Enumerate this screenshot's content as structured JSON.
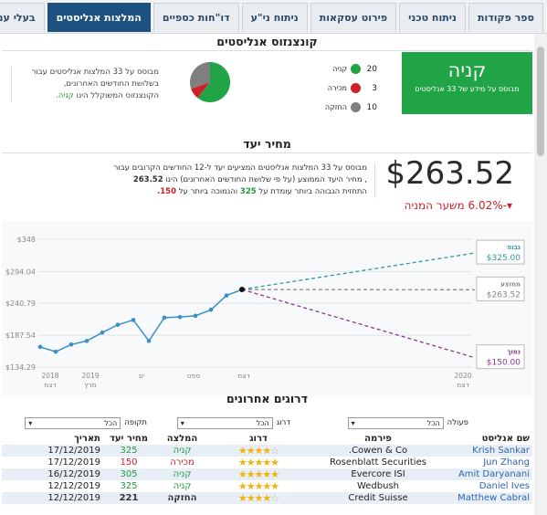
{
  "tabs": [
    "ספר פקודות",
    "ניתוח טכני",
    "פירוט עסקאות",
    "ניתוח ני\"ע",
    "דו\"חות כספיים",
    "המלצות אנליסטים",
    "בעלי עניין"
  ],
  "active_tab": 5,
  "consensus": {
    "title": "קונצנזוס אנליסטים",
    "recommendation": "קניה",
    "based_on": "מבוסס על מידע של 33 אנליסטים",
    "legend": [
      {
        "count": "20",
        "label": "קניה",
        "color": "#21a445"
      },
      {
        "count": "3",
        "label": "מכירה",
        "color": "#cf2027"
      },
      {
        "count": "10",
        "label": "החזקה",
        "color": "#7f7f7f"
      }
    ],
    "text_line1": "מבוסס על 33 המלצות אנליסטים עבור",
    "text_line2": "בשלושת החודשים האחרונים,",
    "text_line3_prefix": "הקונצנזוס המשוקלל הינו",
    "text_line3_value": "קניה."
  },
  "target": {
    "title": "מחיר יעד",
    "price": "$263.52",
    "change": "▾-6.02% משער המניה",
    "text_line1": "מבוסס על 33 המלצות אנליסטים המציעים יעד ל-12 החודשים הקרובים עבור",
    "text_line2": ", מחיר היעד הממוצע (על פי שלושת החודשים האחרונים) הינו",
    "text_line2_value": "263.52",
    "text_line3_a": "התחזית הגבוהה ביותר עומדת על",
    "text_line3_b": "325",
    "text_line3_c": "והנמוכה ביותר על",
    "text_line3_d": "150."
  },
  "chart_data": {
    "type": "line",
    "yticks": [
      "$348",
      "$294.04",
      "$240.79",
      "$187.54",
      "$134.29"
    ],
    "ylim": [
      134.29,
      348
    ],
    "xticks": [
      {
        "top": "2018",
        "bottom": "דצמ"
      },
      {
        "top": "2019",
        "bottom": "מרץ"
      },
      {
        "top": "יונ",
        "bottom": ""
      },
      {
        "top": "ספט",
        "bottom": ""
      },
      {
        "top": "דצמ",
        "bottom": ""
      },
      {
        "top": "2020",
        "bottom": "דצמ"
      }
    ],
    "history": [
      168,
      160,
      172,
      178,
      192,
      205,
      213,
      178,
      217,
      218,
      220,
      230,
      254,
      264
    ],
    "projections": [
      {
        "label": "גבוה",
        "value": "$325.00",
        "y": 325,
        "color": "#2a9aa0"
      },
      {
        "label": "ממוצע",
        "value": "$263.52",
        "y": 263.52,
        "color": "#888888"
      },
      {
        "label": "נמוך",
        "value": "$150.00",
        "y": 150,
        "color": "#8a3a8c"
      }
    ]
  },
  "recent": {
    "title": "דרוגים אחרונים",
    "filters": [
      {
        "label": "פעולה",
        "value": "הכל"
      },
      {
        "label": "דרוג",
        "value": "הכל"
      },
      {
        "label": "תקופה",
        "value": "הכל"
      }
    ],
    "columns": [
      "שם אנליסט",
      "פירמה",
      "דרוג",
      "המלצה",
      "מחיר יעד",
      "תאריך"
    ],
    "rows": [
      {
        "analyst": "Krish Sankar",
        "firm": "Cowen & Co.",
        "stars": 4,
        "rec": "קניה",
        "rec_color": "green",
        "target": "325",
        "target_color": "green",
        "date": "17/12/2019"
      },
      {
        "analyst": "Jun Zhang",
        "firm": "Rosenblatt Securities",
        "stars": 5,
        "rec": "מכירה",
        "rec_color": "red",
        "target": "150",
        "target_color": "red",
        "date": "17/12/2019"
      },
      {
        "analyst": "Amit Daryanani",
        "firm": "Evercore ISI",
        "stars": 5,
        "rec": "קניה",
        "rec_color": "green",
        "target": "305",
        "target_color": "green",
        "date": "16/12/2019"
      },
      {
        "analyst": "Daniel Ives",
        "firm": "Wedbush",
        "stars": 5,
        "rec": "קניה",
        "rec_color": "green",
        "target": "325",
        "target_color": "green",
        "date": "12/12/2019"
      },
      {
        "analyst": "Matthew Cabral",
        "firm": "Credit Suisse",
        "stars": 4,
        "rec": "החזקה",
        "rec_color": "gray",
        "target": "221",
        "target_color": "gray",
        "date": "12/12/2019"
      }
    ]
  }
}
